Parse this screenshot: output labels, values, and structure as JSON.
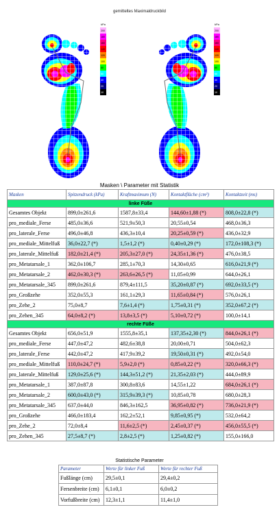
{
  "figure": {
    "title": "gemitteltes Maximaldruckbild",
    "scale_unit": "kPa",
    "scale_ticks": [
      "200",
      "180",
      "160",
      "140",
      "120",
      "100",
      "80",
      "60",
      "40",
      "20",
      "10"
    ],
    "scale_colors": [
      "#ffb0ff",
      "#ff00ff",
      "#ff0080",
      "#ff0000",
      "#ff8000",
      "#ffff00",
      "#00ff00",
      "#00ffff",
      "#0000ff",
      "#000080",
      "#000000"
    ]
  },
  "table_caption": "Masken \\ Parameter mit Statistik",
  "headers": [
    "Masken",
    "Spitzendruck (kPa)",
    "Kraftmaximum (N)",
    "Kontaktfläche (cm²)",
    "Kontaktzeit (ms)"
  ],
  "sections": [
    {
      "title": "linke Füße",
      "rows": [
        {
          "cells": [
            "Gesamtes Objekt",
            "899,0±261,6",
            "1587,8±33,4",
            "144,60±1,88 (*)",
            "808,0±22,8 (*)"
          ],
          "hl": [
            "",
            "",
            "",
            "pk",
            "cy"
          ]
        },
        {
          "cells": [
            "pro_mediale_Ferse",
            "485,0±36,6",
            "521,9±50,3",
            "20,55±0,54",
            "468,0±36,3"
          ],
          "hl": [
            "",
            "",
            "",
            "",
            ""
          ]
        },
        {
          "cells": [
            "pro_laterale_Ferse",
            "496,0±46,8",
            "436,3±10,4",
            "20,25±0,59 (*)",
            "436,0±32,9"
          ],
          "hl": [
            "",
            "",
            "",
            "pk",
            ""
          ]
        },
        {
          "cells": [
            "pro_mediale_Mittelfuß",
            "36,0±22,7 (*)",
            "1,5±1,2 (*)",
            "0,40±0,29 (*)",
            "172,0±108,3 (*)"
          ],
          "hl": [
            "",
            "cy",
            "cy",
            "cy",
            "cy"
          ]
        },
        {
          "cells": [
            "pro_laterale_Mittelfuß",
            "182,0±21,4 (*)",
            "205,3±27,0 (*)",
            "24,35±1,36 (*)",
            "476,0±38,5"
          ],
          "hl": [
            "",
            "pk",
            "pk",
            "pk",
            ""
          ]
        },
        {
          "cells": [
            "pro_Metatarsale_1",
            "362,0±106,7",
            "285,1±70,3",
            "14,30±0,65",
            "616,0±21,9 (*)"
          ],
          "hl": [
            "",
            "",
            "",
            "",
            "cy"
          ]
        },
        {
          "cells": [
            "pro_Metatarsale_2",
            "462,0±30,3 (*)",
            "263,6±26,5 (*)",
            "11,05±0,99",
            "644,0±26,1"
          ],
          "hl": [
            "",
            "pk",
            "pk",
            "",
            ""
          ]
        },
        {
          "cells": [
            "pro_Metatarsale_345",
            "899,0±261,6",
            "879,4±111,5",
            "35,20±0,87 (*)",
            "692,0±33,5 (*)"
          ],
          "hl": [
            "",
            "",
            "",
            "cy",
            "cy"
          ]
        },
        {
          "cells": [
            "pro_Großzehe",
            "352,0±55,3",
            "161,1±29,3",
            "11,65±0,84 (*)",
            "576,0±26,1"
          ],
          "hl": [
            "",
            "",
            "",
            "pk",
            ""
          ]
        },
        {
          "cells": [
            "pro_Zehe_2",
            "75,0±8,7",
            "7,6±1,4 (*)",
            "1,75±0,31 (*)",
            "352,0±67,2 (*)"
          ],
          "hl": [
            "",
            "",
            "cy",
            "cy",
            "cy"
          ]
        },
        {
          "cells": [
            "pro_Zehen_345",
            "64,0±8,2 (*)",
            "13,8±3,5 (*)",
            "5,10±0,72 (*)",
            "100,0±14,1"
          ],
          "hl": [
            "",
            "pk",
            "pk",
            "pk",
            ""
          ]
        }
      ]
    },
    {
      "title": "rechte Füße",
      "rows": [
        {
          "cells": [
            "Gesamtes Objekt",
            "656,0±51,9",
            "1555,8±35,1",
            "137,35±2,30 (*)",
            "844,0±26,1 (*)"
          ],
          "hl": [
            "",
            "",
            "",
            "cy",
            "pk"
          ]
        },
        {
          "cells": [
            "pro_mediale_Ferse",
            "447,0±47,2",
            "482,6±38,8",
            "20,00±0,71",
            "504,0±62,3"
          ],
          "hl": [
            "",
            "",
            "",
            "",
            ""
          ]
        },
        {
          "cells": [
            "pro_laterale_Ferse",
            "442,0±47,2",
            "417,9±39,2",
            "19,50±0,31 (*)",
            "492,0±54,0"
          ],
          "hl": [
            "",
            "",
            "",
            "cy",
            ""
          ]
        },
        {
          "cells": [
            "pro_mediale_Mittelfuß",
            "110,0±24,7 (*)",
            "5,9±2,0 (*)",
            "0,85±0,22 (*)",
            "320,0±66,3 (*)"
          ],
          "hl": [
            "",
            "pk",
            "pk",
            "pk",
            "pk"
          ]
        },
        {
          "cells": [
            "pro_laterale_Mittelfuß",
            "129,0±25,6 (*)",
            "144,3±51,2 (*)",
            "21,35±2,03 (*)",
            "444,0±89,9"
          ],
          "hl": [
            "",
            "cy",
            "cy",
            "cy",
            ""
          ]
        },
        {
          "cells": [
            "pro_Metatarsale_1",
            "387,0±87,8",
            "300,8±83,6",
            "14,55±1,22",
            "684,0±26,1 (*)"
          ],
          "hl": [
            "",
            "",
            "",
            "",
            "pk"
          ]
        },
        {
          "cells": [
            "pro_Metatarsale_2",
            "600,0±43,0 (*)",
            "315,9±39,3 (*)",
            "10,85±0,78",
            "680,0±28,3"
          ],
          "hl": [
            "",
            "cy",
            "cy",
            "",
            ""
          ]
        },
        {
          "cells": [
            "pro_Metatarsale_345",
            "637,0±44,0",
            "846,3±162,5",
            "36,95±0,82 (*)",
            "736,0±21,9 (*)"
          ],
          "hl": [
            "",
            "",
            "",
            "pk",
            "pk"
          ]
        },
        {
          "cells": [
            "pro_Großzehe",
            "466,0±183,4",
            "162,2±52,1",
            "9,85±0,95 (*)",
            "532,0±64,2"
          ],
          "hl": [
            "",
            "",
            "",
            "cy",
            ""
          ]
        },
        {
          "cells": [
            "pro_Zehe_2",
            "72,0±8,4",
            "11,6±2,5 (*)",
            "2,45±0,37 (*)",
            "456,0±55,5 (*)"
          ],
          "hl": [
            "",
            "",
            "pk",
            "pk",
            "pk"
          ]
        },
        {
          "cells": [
            "pro_Zehen_345",
            "27,5±8,7 (*)",
            "2,8±2,5 (*)",
            "1,25±0,82 (*)",
            "155,0±166,0"
          ],
          "hl": [
            "",
            "cy",
            "cy",
            "cy",
            ""
          ]
        }
      ]
    }
  ],
  "stats": {
    "caption": "Statistische Parameter",
    "headers": [
      "Parameter",
      "Werte für linker Fuß",
      "Werte für rechter Fuß"
    ],
    "rows": [
      [
        "Fußlänge (cm)",
        "29,5±0,1",
        "29,4±0,2"
      ],
      [
        "Fersenbreite (cm)",
        "6,1±0,1",
        "6,0±0,2"
      ],
      [
        "Vorfußbreite (cm)",
        "12,3±1,1",
        "11,4±1,0"
      ]
    ]
  }
}
